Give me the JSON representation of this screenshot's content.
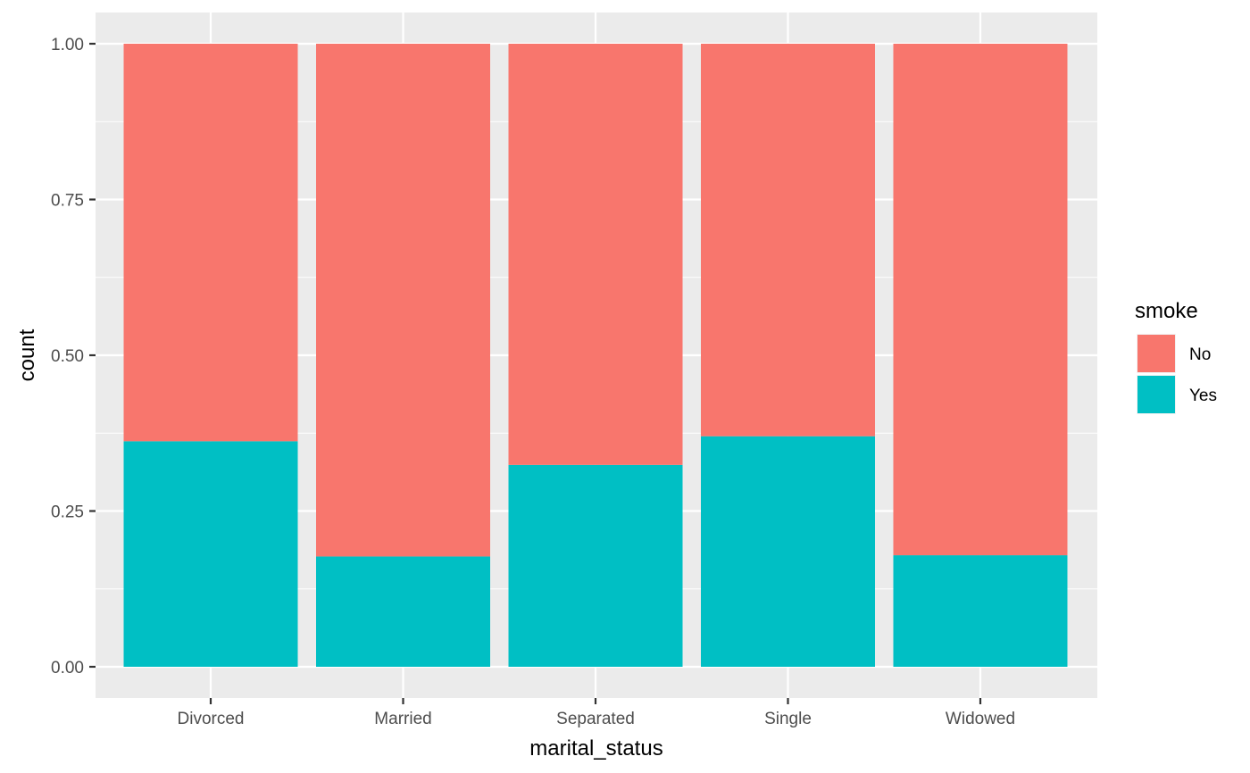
{
  "chart_data": {
    "type": "bar",
    "stacked": true,
    "position": "fill",
    "categories": [
      "Divorced",
      "Married",
      "Separated",
      "Single",
      "Widowed"
    ],
    "series": [
      {
        "name": "No",
        "color": "#F8766D",
        "values": [
          0.638,
          0.823,
          0.676,
          0.63,
          0.821
        ]
      },
      {
        "name": "Yes",
        "color": "#00BFC4",
        "values": [
          0.362,
          0.177,
          0.324,
          0.37,
          0.179
        ]
      }
    ],
    "title": "",
    "xlabel": "marital_status",
    "ylabel": "count",
    "ylim": [
      0,
      1
    ],
    "yticks": [
      0,
      0.25,
      0.5,
      0.75,
      1
    ],
    "ytick_labels": [
      "0.00",
      "0.25",
      "0.50",
      "0.75",
      "1.00"
    ],
    "grid": true,
    "panel_background": "#EBEBEB",
    "legend": {
      "title": "smoke",
      "position": "right"
    }
  }
}
